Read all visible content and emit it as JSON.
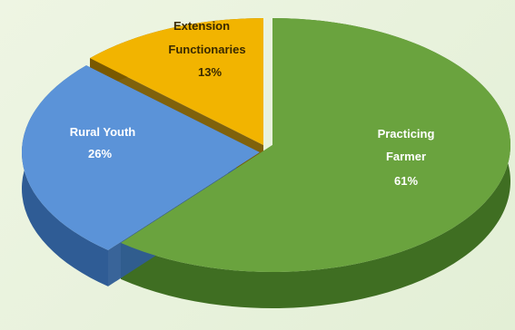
{
  "chart_data": {
    "type": "pie",
    "title": "",
    "series": [
      {
        "name": "",
        "slices": [
          {
            "label": "Practicing Farmer",
            "value": 61,
            "value_label": "61%",
            "color": "#6aa33e",
            "dark_color": "#3f6e22",
            "label_color": "#ffffff",
            "exploded": false
          },
          {
            "label": "Rural Youth",
            "value": 26,
            "value_label": "26%",
            "color": "#5b93d8",
            "dark_color": "#2f5c95",
            "label_color": "#ffffff",
            "exploded": true
          },
          {
            "label": "Extension Functionaries",
            "value": 13,
            "value_label": "13%",
            "color": "#f2b400",
            "dark_color": "#7a5a00",
            "label_color": "#3a2a00",
            "exploded": true
          }
        ]
      }
    ],
    "legend": "none",
    "style": "3d-exploded"
  }
}
